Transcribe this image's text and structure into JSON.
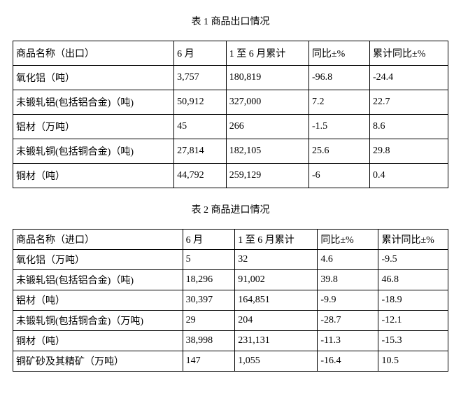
{
  "export_table": {
    "title": "表 1 商品出口情况",
    "columns": [
      "商品名称（出口）",
      "6 月",
      "1 至 6 月累计",
      "同比±%",
      "累计同比±%"
    ],
    "rows": [
      [
        "氧化铝（吨）",
        "3,757",
        "180,819",
        "-96.8",
        "-24.4"
      ],
      [
        "未锻轧铝(包括铝合金)（吨)",
        "50,912",
        "327,000",
        "7.2",
        "22.7"
      ],
      [
        "铝材（万吨）",
        "45",
        "266",
        "-1.5",
        "8.6"
      ],
      [
        "未锻轧铜(包括铜合金)（吨)",
        "27,814",
        "182,105",
        "25.6",
        "29.8"
      ],
      [
        "铜材（吨）",
        "44,792",
        "259,129",
        "-6",
        "0.4"
      ]
    ]
  },
  "import_table": {
    "title": "表 2 商品进口情况",
    "columns": [
      "商品名称（进口）",
      "6 月",
      "1 至 6 月累计",
      "同比±%",
      "累计同比±%"
    ],
    "rows": [
      [
        "氧化铝（万吨）",
        "5",
        "32",
        "4.6",
        "-9.5"
      ],
      [
        "未锻轧铝(包括铝合金)（吨)",
        "18,296",
        "91,002",
        "39.8",
        "46.8"
      ],
      [
        "铝材（吨）",
        "30,397",
        "164,851",
        "-9.9",
        "-18.9"
      ],
      [
        "未锻轧铜(包括铜合金)（万吨)",
        "29",
        "204",
        "-28.7",
        "-12.1"
      ],
      [
        "铜材（吨）",
        "38,998",
        "231,131",
        "-11.3",
        "-15.3"
      ],
      [
        "铜矿砂及其精矿（万吨）",
        "147",
        "1,055",
        "-16.4",
        "10.5"
      ]
    ]
  },
  "style": {
    "font_family": "SimSun",
    "font_size_pt": 10.5,
    "border_color": "#000000",
    "background_color": "#ffffff",
    "text_color": "#000000"
  }
}
